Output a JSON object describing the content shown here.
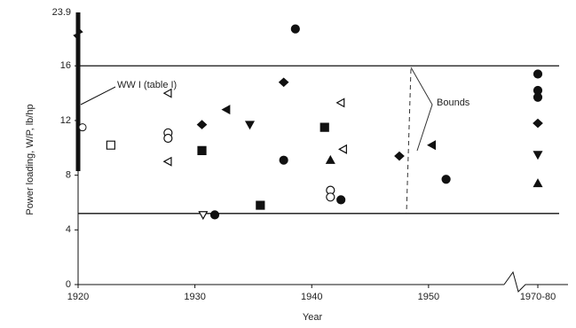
{
  "chart_data": {
    "type": "scatter",
    "x_label": "Year",
    "y_label": "Power loading, W/P, lb/hp",
    "xlim": [
      1920,
      1957
    ],
    "xticks": [
      1920,
      1930,
      1940,
      1950
    ],
    "ylim": [
      0,
      19
    ],
    "yticks": [
      0,
      4,
      8,
      12,
      16
    ],
    "y_break_tick": 23.9,
    "x": [
      1922.8,
      1927.7,
      1927.7,
      1927.7,
      1927.7,
      1930.6,
      1930.6,
      1930.7,
      1931.7,
      1932.7,
      1934.7,
      1935.6,
      1937.6,
      1937.6,
      1938.6,
      1941.1,
      1941.6,
      1941.6,
      1941.6,
      1942.5,
      1942.5,
      1942.7,
      1947.5,
      1950.3,
      1951.5
    ],
    "values": [
      10.2,
      14.0,
      11.1,
      10.7,
      9.0,
      11.7,
      9.8,
      5.1,
      5.1,
      12.8,
      11.7,
      5.8,
      14.8,
      9.1,
      18.7,
      11.5,
      9.1,
      6.9,
      6.4,
      6.2,
      13.3,
      9.9,
      9.4,
      10.2,
      7.7
    ],
    "markers": [
      "square",
      "tri-left",
      "circle",
      "circle",
      "tri-left",
      "diamond",
      "square",
      "tri-down",
      "circle",
      "tri-left",
      "tri-down",
      "square",
      "diamond",
      "circle",
      "circle",
      "square",
      "tri-up",
      "circle",
      "circle",
      "circle",
      "tri-left",
      "tri-left",
      "diamond",
      "tri-left",
      "circle"
    ],
    "filled": [
      false,
      false,
      false,
      false,
      false,
      true,
      true,
      false,
      true,
      true,
      true,
      true,
      true,
      true,
      true,
      true,
      true,
      false,
      false,
      true,
      false,
      false,
      true,
      true,
      true
    ],
    "break_category": "1970-80",
    "break_values": [
      15.4,
      14.2,
      13.7,
      11.8,
      9.5,
      7.4
    ],
    "break_markers": [
      "circle",
      "circle",
      "circle",
      "diamond",
      "tri-down",
      "tri-up"
    ],
    "bounds": {
      "label": "Bounds",
      "upper": 16,
      "lower": 5.2
    },
    "ww1": {
      "label": "WW I (table I)",
      "x": 1920,
      "point": 11.5,
      "range": [
        8.3,
        23.9
      ]
    },
    "color": "#111"
  }
}
